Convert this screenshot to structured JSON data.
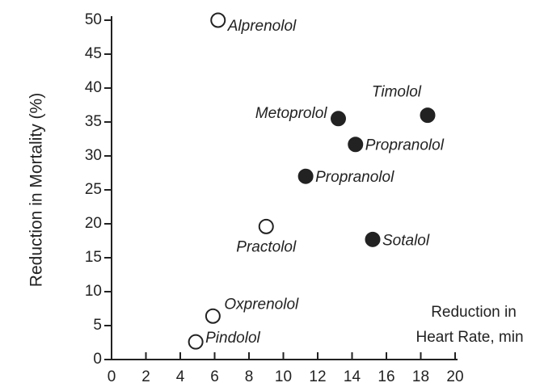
{
  "chart_data": {
    "type": "scatter",
    "ylabel": "Reduction in Mortality (%)",
    "xlabel": [
      "Reduction in",
      "Heart Rate, min"
    ],
    "x": [
      6.2,
      18.4,
      13.2,
      14.2,
      11.3,
      9.0,
      15.2,
      5.9,
      4.9
    ],
    "y": [
      50,
      36,
      35.5,
      31.7,
      27,
      19.6,
      17.7,
      6.4,
      2.6
    ],
    "labels": [
      "Alprenolol",
      "Timolol",
      "Metoprolol",
      "Propranolol",
      "Propranolol",
      "Practolol",
      "Sotalol",
      "Oxprenolol",
      "Pindolol"
    ],
    "filled": [
      false,
      true,
      true,
      true,
      true,
      false,
      true,
      false,
      false
    ],
    "color": "#222222",
    "xlim": [
      0,
      20
    ],
    "xticks": [
      0,
      2,
      4,
      6,
      8,
      10,
      12,
      14,
      16,
      18,
      20
    ],
    "ylim": [
      0,
      50
    ],
    "yticks": [
      0,
      5,
      10,
      15,
      20,
      25,
      30,
      35,
      40,
      45,
      50
    ]
  }
}
